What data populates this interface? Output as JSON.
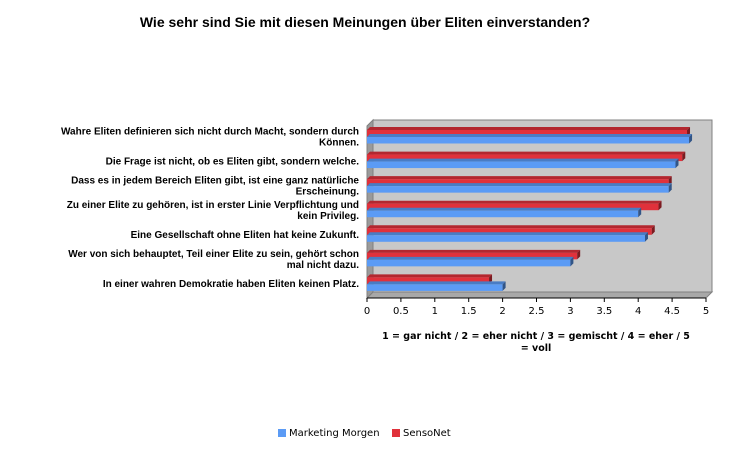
{
  "chart_data": {
    "type": "bar",
    "orientation": "horizontal",
    "title": "Wie sehr sind Sie mit diesen Meinungen über Eliten einverstanden?",
    "xlabel": [
      "1 = gar nicht / 2 = eher nicht / 3 = gemischt / 4 = eher / 5",
      "= voll"
    ],
    "ylabel": "",
    "xlim": [
      0,
      5
    ],
    "xticks": [
      "0",
      "0.5",
      "1",
      "1.5",
      "2",
      "2.5",
      "3",
      "3.5",
      "4",
      "4.5",
      "5"
    ],
    "grid": false,
    "legend_position": "bottom",
    "categories": [
      [
        "Wahre Eliten definieren sich nicht durch Macht, sondern durch",
        "Können."
      ],
      [
        "Die Frage ist nicht, ob es Eliten gibt, sondern welche."
      ],
      [
        "Dass es in jedem Bereich Eliten gibt, ist eine ganz natürliche",
        "Erscheinung."
      ],
      [
        "Zu einer Elite zu gehören, ist in erster Linie Verpflichtung und",
        "kein Privileg."
      ],
      [
        "Eine Gesellschaft ohne Eliten hat keine Zukunft."
      ],
      [
        "Wer von sich behauptet, Teil einer Elite zu sein, gehört schon",
        "mal nicht dazu."
      ],
      [
        "In einer wahren Demokratie haben Eliten keinen Platz."
      ]
    ],
    "series": [
      {
        "name": "Marketing Morgen",
        "color": "#5b9bf5",
        "values": [
          4.75,
          4.55,
          4.45,
          4.0,
          4.1,
          3.0,
          2.0
        ]
      },
      {
        "name": "SensoNet",
        "color": "#e0313b",
        "values": [
          4.72,
          4.65,
          4.45,
          4.3,
          4.2,
          3.1,
          1.8
        ]
      }
    ]
  }
}
